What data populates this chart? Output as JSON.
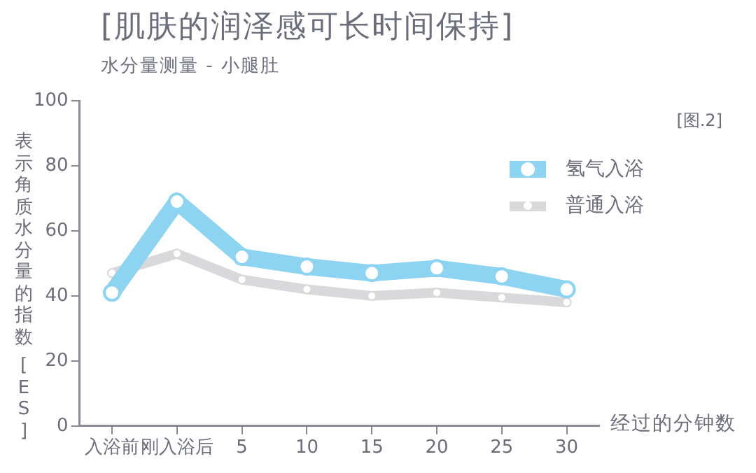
{
  "chart_data": {
    "type": "line",
    "title": "[肌肤的润泽感可长时间保持]",
    "subtitle": "水分量测量 - 小腿肚",
    "xlabel": "经过的分钟数",
    "ylabel": "表示角质水分量的指数 [ES]",
    "annotations": [
      "[图.2]"
    ],
    "categories": [
      "入浴前",
      "刚入浴后",
      "5",
      "10",
      "15",
      "20",
      "25",
      "30"
    ],
    "series": [
      {
        "name": "氢气入浴",
        "color": "#8dd3f2",
        "values": [
          41,
          69,
          52,
          49,
          47,
          48.5,
          46,
          42
        ]
      },
      {
        "name": "普通入浴",
        "color": "#d9d8da",
        "values": [
          47,
          53,
          45,
          42,
          40,
          41,
          39.5,
          38
        ]
      }
    ],
    "ylim": [
      0,
      100
    ],
    "yticks": [
      0,
      20,
      40,
      60,
      80,
      100
    ],
    "grid": false,
    "legend": "top right",
    "marker": "circle",
    "line_style": "solid"
  }
}
